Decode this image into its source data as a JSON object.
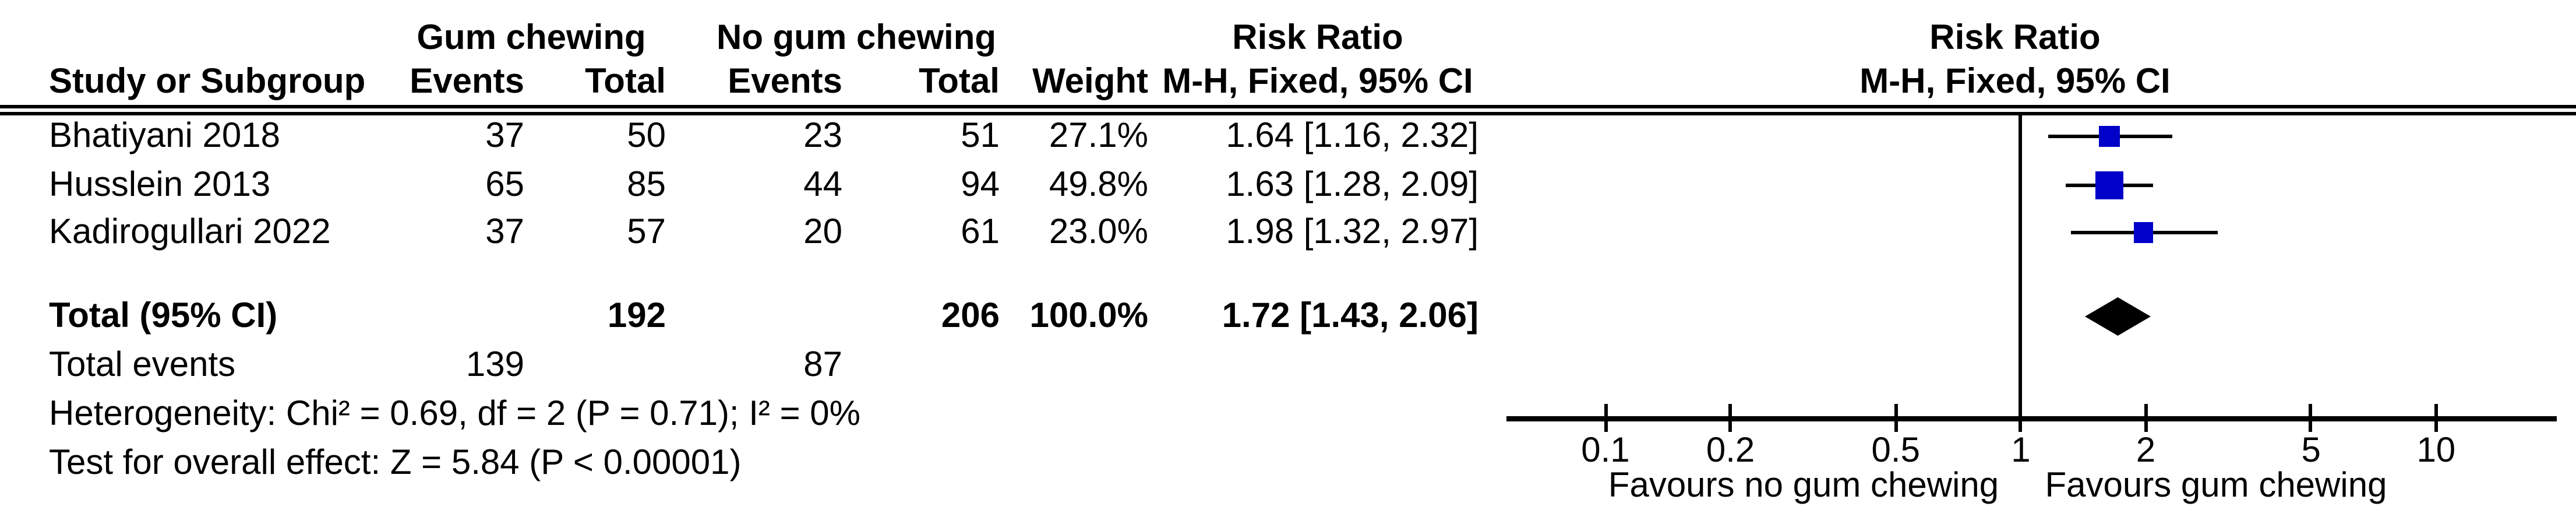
{
  "table": {
    "group_headers": {
      "experimental": "Gum chewing",
      "control": "No gum chewing",
      "effect": "Risk Ratio",
      "effect_plot": "Risk Ratio"
    },
    "col_headers": {
      "study": "Study or Subgroup",
      "events1": "Events",
      "total1": "Total",
      "events2": "Events",
      "total2": "Total",
      "weight": "Weight",
      "mh": "M-H, Fixed, 95% CI",
      "mh_plot": "M-H, Fixed, 95% CI"
    },
    "rows": [
      {
        "study": "Bhatiyani 2018",
        "events1": "37",
        "total1": "50",
        "events2": "23",
        "total2": "51",
        "weight": "27.1%",
        "rr": "1.64 [1.16, 2.32]"
      },
      {
        "study": "Husslein 2013",
        "events1": "65",
        "total1": "85",
        "events2": "44",
        "total2": "94",
        "weight": "49.8%",
        "rr": "1.63 [1.28, 2.09]"
      },
      {
        "study": "Kadirogullari 2022",
        "events1": "37",
        "total1": "57",
        "events2": "20",
        "total2": "61",
        "weight": "23.0%",
        "rr": "1.98 [1.32, 2.97]"
      }
    ],
    "total_row": {
      "label": "Total (95% CI)",
      "total1": "192",
      "total2": "206",
      "weight": "100.0%",
      "rr": "1.72 [1.43, 2.06]"
    },
    "total_events": {
      "label": "Total events",
      "events1": "139",
      "events2": "87"
    },
    "heterogeneity": "Heterogeneity: Chi² = 0.69, df = 2 (P = 0.71); I² = 0%",
    "overall_effect": "Test for overall effect: Z = 5.84 (P < 0.00001)"
  },
  "chart_data": {
    "type": "forest",
    "title": "Risk Ratio",
    "subtitle": "M-H, Fixed, 95% CI",
    "x_scale": "log10",
    "x_range": [
      0.055,
      20
    ],
    "ticks": [
      "0.1",
      "0.2",
      "0.5",
      "1",
      "2",
      "5",
      "10"
    ],
    "axis_labels": {
      "left": "Favours no gum chewing",
      "right": "Favours gum chewing"
    },
    "studies": [
      {
        "name": "Bhatiyani 2018",
        "rr": 1.64,
        "ci_low": 1.16,
        "ci_high": 2.32,
        "weight_pct": 27.1
      },
      {
        "name": "Husslein 2013",
        "rr": 1.63,
        "ci_low": 1.28,
        "ci_high": 2.09,
        "weight_pct": 49.8
      },
      {
        "name": "Kadirogullari 2022",
        "rr": 1.98,
        "ci_low": 1.32,
        "ci_high": 2.97,
        "weight_pct": 23.0
      }
    ],
    "total": {
      "label": "Total (95% CI)",
      "rr": 1.72,
      "ci_low": 1.43,
      "ci_high": 2.06,
      "weight_pct": 100.0
    },
    "marker_color": "#0000C8",
    "line_color": "#000000"
  }
}
